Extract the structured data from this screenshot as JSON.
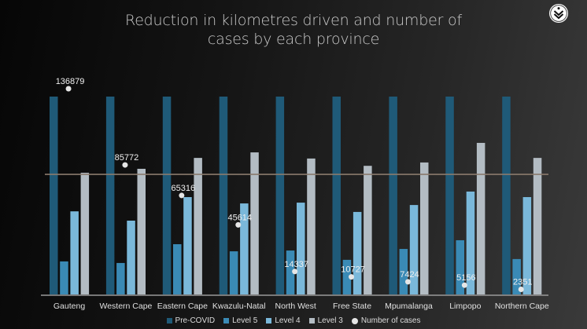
{
  "chart_data": {
    "type": "bar",
    "title": "Reduction in kilometres driven and number of cases by each province",
    "title_lines": [
      "Reduction in kilometres driven and number of",
      "cases by each province"
    ],
    "xlabel": "",
    "ylabel": "",
    "y_axis_note": "No y-axis ticks shown; bar values are estimated relative to Pre-COVID = 100",
    "ylim": [
      0,
      100
    ],
    "grid": false,
    "legend_position": "bottom",
    "categories": [
      "Gauteng",
      "Western Cape",
      "Eastern Cape",
      "Kwazulu-Natal",
      "North West",
      "Free State",
      "Mpumalanga",
      "Limpopo",
      "Northern Cape"
    ],
    "series": [
      {
        "name": "Pre-COVID",
        "color": "#1f5a78",
        "values": [
          100,
          100,
          100,
          100,
          100,
          100,
          100,
          100,
          100
        ]
      },
      {
        "name": "Level 5",
        "color": "#3a8ab5",
        "values": [
          16.7,
          15.9,
          25.4,
          21.8,
          22.2,
          17.5,
          23.0,
          27.4,
          17.9
        ]
      },
      {
        "name": "Level 4",
        "color": "#7ab8da",
        "values": [
          42.0,
          37.3,
          49.2,
          46.0,
          46.4,
          41.7,
          45.2,
          52.0,
          49.2
        ]
      },
      {
        "name": "Level 3",
        "color": "#b3bcc3",
        "values": [
          61.5,
          63.5,
          69.0,
          71.8,
          68.7,
          65.0,
          66.7,
          76.6,
          69.0
        ]
      }
    ],
    "cases_series": {
      "name": "Number of cases",
      "color": "#e6e6e6",
      "values": [
        136879,
        85772,
        65316,
        45614,
        14337,
        10727,
        7424,
        5156,
        2351
      ],
      "labels": [
        "136879",
        "85772",
        "65316",
        "45614",
        "14337",
        "10727",
        "7424",
        "5156",
        "2351"
      ],
      "max": 136879
    },
    "reference_line": {
      "value": 60.7,
      "color": "#8a7a6c"
    }
  },
  "logo": {
    "name": "discovery-logo-icon"
  }
}
